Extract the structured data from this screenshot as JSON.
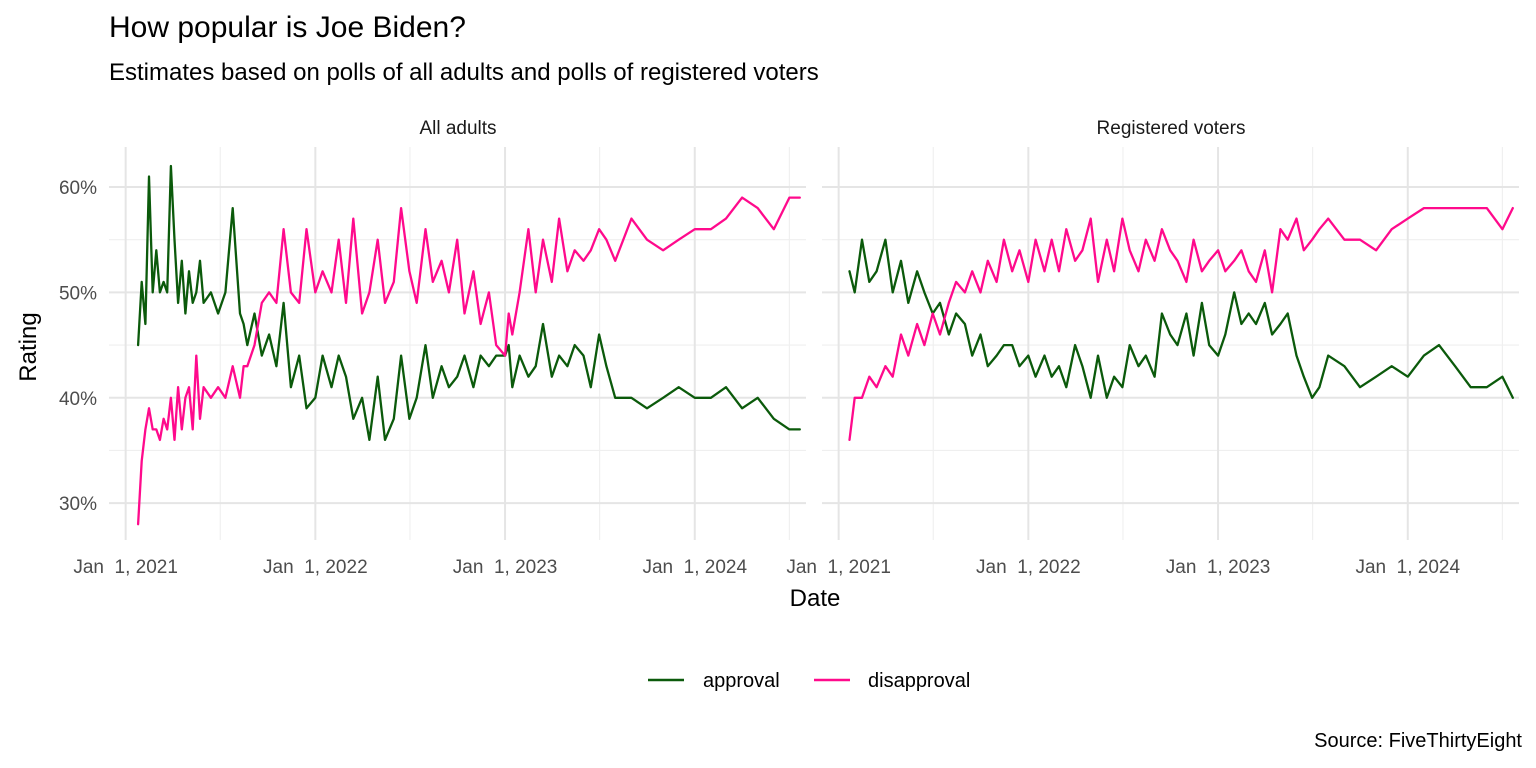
{
  "chart_data": {
    "type": "line",
    "title": "How popular is Joe Biden?",
    "subtitle": "Estimates based on polls of all adults and polls of registered voters",
    "source": "Source: FiveThirtyEight",
    "xlabel": "Date",
    "ylabel": "Rating",
    "ylim": [
      26.5,
      63.8
    ],
    "xlim": [
      "2020-11-30",
      "2024-08-02"
    ],
    "y_ticks": [
      30,
      40,
      50,
      60
    ],
    "y_tick_labels": [
      "30%",
      "40%",
      "50%",
      "60%"
    ],
    "x_ticks": [
      "2021-01-01",
      "2022-01-01",
      "2023-01-01",
      "2024-01-01"
    ],
    "x_tick_labels": [
      "Jan  1, 2021",
      "Jan  1, 2022",
      "Jan  1, 2023",
      "Jan  1, 2024"
    ],
    "grid": true,
    "legend": {
      "position": "bottom",
      "entries": [
        {
          "label": "approval",
          "color": "#0b5a0b"
        },
        {
          "label": "disapproval",
          "color": "#ff0a8c"
        }
      ]
    },
    "panels": [
      {
        "label": "All adults",
        "series": [
          {
            "name": "approval",
            "color": "#0b5a0b",
            "x": [
              "2021-01-25",
              "2021-02-01",
              "2021-02-08",
              "2021-02-15",
              "2021-02-22",
              "2021-03-01",
              "2021-03-08",
              "2021-03-15",
              "2021-03-22",
              "2021-03-29",
              "2021-04-05",
              "2021-04-12",
              "2021-04-19",
              "2021-04-26",
              "2021-05-03",
              "2021-05-10",
              "2021-05-17",
              "2021-05-24",
              "2021-05-31",
              "2021-06-14",
              "2021-06-28",
              "2021-07-12",
              "2021-07-26",
              "2021-08-09",
              "2021-08-16",
              "2021-08-23",
              "2021-09-06",
              "2021-09-20",
              "2021-10-04",
              "2021-10-18",
              "2021-11-01",
              "2021-11-15",
              "2021-12-01",
              "2021-12-15",
              "2022-01-01",
              "2022-01-15",
              "2022-02-01",
              "2022-02-15",
              "2022-03-01",
              "2022-03-15",
              "2022-04-01",
              "2022-04-15",
              "2022-05-01",
              "2022-05-15",
              "2022-06-01",
              "2022-06-15",
              "2022-07-01",
              "2022-07-15",
              "2022-08-01",
              "2022-08-15",
              "2022-09-01",
              "2022-09-15",
              "2022-10-01",
              "2022-10-15",
              "2022-11-01",
              "2022-11-15",
              "2022-12-01",
              "2022-12-15",
              "2023-01-01",
              "2023-01-08",
              "2023-01-15",
              "2023-01-29",
              "2023-02-15",
              "2023-03-01",
              "2023-03-15",
              "2023-04-01",
              "2023-04-15",
              "2023-05-01",
              "2023-05-15",
              "2023-06-01",
              "2023-06-15",
              "2023-07-01",
              "2023-07-15",
              "2023-08-01",
              "2023-09-01",
              "2023-10-01",
              "2023-11-01",
              "2023-12-01",
              "2024-01-01",
              "2024-02-01",
              "2024-03-01",
              "2024-04-01",
              "2024-05-01",
              "2024-06-01",
              "2024-07-01",
              "2024-07-21"
            ],
            "values": [
              45,
              51,
              47,
              61,
              50,
              54,
              50,
              51,
              50,
              62,
              55,
              49,
              53,
              48,
              52,
              49,
              50,
              53,
              49,
              50,
              48,
              50,
              58,
              48,
              47,
              45,
              48,
              44,
              46,
              43,
              49,
              41,
              44,
              39,
              40,
              44,
              41,
              44,
              42,
              38,
              40,
              36,
              42,
              36,
              38,
              44,
              38,
              40,
              45,
              40,
              43,
              41,
              42,
              44,
              41,
              44,
              43,
              44,
              44,
              45,
              41,
              44,
              42,
              43,
              47,
              42,
              44,
              43,
              45,
              44,
              41,
              46,
              43,
              40,
              40,
              39,
              40,
              41,
              40,
              40,
              41,
              39,
              40,
              38,
              37,
              37
            ]
          },
          {
            "name": "disapproval",
            "color": "#ff0a8c",
            "x": [
              "2021-01-25",
              "2021-02-01",
              "2021-02-08",
              "2021-02-15",
              "2021-02-22",
              "2021-03-01",
              "2021-03-08",
              "2021-03-15",
              "2021-03-22",
              "2021-03-29",
              "2021-04-05",
              "2021-04-12",
              "2021-04-19",
              "2021-04-26",
              "2021-05-03",
              "2021-05-10",
              "2021-05-17",
              "2021-05-24",
              "2021-05-31",
              "2021-06-14",
              "2021-06-28",
              "2021-07-12",
              "2021-07-26",
              "2021-08-09",
              "2021-08-16",
              "2021-08-23",
              "2021-09-06",
              "2021-09-20",
              "2021-10-04",
              "2021-10-18",
              "2021-11-01",
              "2021-11-15",
              "2021-12-01",
              "2021-12-15",
              "2022-01-01",
              "2022-01-15",
              "2022-02-01",
              "2022-02-15",
              "2022-03-01",
              "2022-03-15",
              "2022-04-01",
              "2022-04-15",
              "2022-05-01",
              "2022-05-15",
              "2022-06-01",
              "2022-06-15",
              "2022-07-01",
              "2022-07-15",
              "2022-08-01",
              "2022-08-15",
              "2022-09-01",
              "2022-09-15",
              "2022-10-01",
              "2022-10-15",
              "2022-11-01",
              "2022-11-15",
              "2022-12-01",
              "2022-12-15",
              "2023-01-01",
              "2023-01-08",
              "2023-01-15",
              "2023-01-29",
              "2023-02-15",
              "2023-03-01",
              "2023-03-15",
              "2023-04-01",
              "2023-04-15",
              "2023-05-01",
              "2023-05-15",
              "2023-06-01",
              "2023-06-15",
              "2023-07-01",
              "2023-07-15",
              "2023-08-01",
              "2023-09-01",
              "2023-10-01",
              "2023-11-01",
              "2023-12-01",
              "2024-01-01",
              "2024-02-01",
              "2024-03-01",
              "2024-04-01",
              "2024-05-01",
              "2024-06-01",
              "2024-07-01",
              "2024-07-21"
            ],
            "values": [
              28,
              34,
              37,
              39,
              37,
              37,
              36,
              38,
              37,
              40,
              36,
              41,
              37,
              40,
              41,
              37,
              44,
              38,
              41,
              40,
              41,
              40,
              43,
              40,
              43,
              43,
              45,
              49,
              50,
              49,
              56,
              50,
              49,
              56,
              50,
              52,
              50,
              55,
              49,
              57,
              48,
              50,
              55,
              49,
              51,
              58,
              52,
              49,
              56,
              51,
              53,
              50,
              55,
              48,
              52,
              47,
              50,
              45,
              44,
              48,
              46,
              50,
              56,
              50,
              55,
              51,
              57,
              52,
              54,
              53,
              54,
              56,
              55,
              53,
              57,
              55,
              54,
              55,
              56,
              56,
              57,
              59,
              58,
              56,
              59,
              59
            ]
          }
        ]
      },
      {
        "label": "Registered voters",
        "series": [
          {
            "name": "approval",
            "color": "#0b5a0b",
            "x": [
              "2021-01-22",
              "2021-02-01",
              "2021-02-15",
              "2021-03-01",
              "2021-03-15",
              "2021-04-01",
              "2021-04-15",
              "2021-05-01",
              "2021-05-15",
              "2021-06-01",
              "2021-06-15",
              "2021-07-01",
              "2021-07-15",
              "2021-08-01",
              "2021-08-15",
              "2021-09-01",
              "2021-09-15",
              "2021-10-01",
              "2021-10-15",
              "2021-11-01",
              "2021-11-15",
              "2021-12-01",
              "2021-12-15",
              "2022-01-01",
              "2022-01-15",
              "2022-02-01",
              "2022-02-15",
              "2022-03-01",
              "2022-03-15",
              "2022-04-01",
              "2022-04-15",
              "2022-05-01",
              "2022-05-15",
              "2022-06-01",
              "2022-06-15",
              "2022-07-01",
              "2022-07-15",
              "2022-08-01",
              "2022-08-15",
              "2022-09-01",
              "2022-09-15",
              "2022-10-01",
              "2022-10-15",
              "2022-11-01",
              "2022-11-15",
              "2022-12-01",
              "2022-12-15",
              "2023-01-01",
              "2023-01-15",
              "2023-02-01",
              "2023-02-15",
              "2023-03-01",
              "2023-03-15",
              "2023-04-01",
              "2023-04-15",
              "2023-05-01",
              "2023-05-15",
              "2023-06-01",
              "2023-06-15",
              "2023-07-01",
              "2023-07-15",
              "2023-08-01",
              "2023-09-01",
              "2023-10-01",
              "2023-11-01",
              "2023-12-01",
              "2024-01-01",
              "2024-02-01",
              "2024-03-01",
              "2024-04-01",
              "2024-05-01",
              "2024-06-01",
              "2024-07-01",
              "2024-07-21"
            ],
            "values": [
              52,
              50,
              55,
              51,
              52,
              55,
              50,
              53,
              49,
              52,
              50,
              48,
              49,
              46,
              48,
              47,
              44,
              46,
              43,
              44,
              45,
              45,
              43,
              44,
              42,
              44,
              42,
              43,
              41,
              45,
              43,
              40,
              44,
              40,
              42,
              41,
              45,
              43,
              44,
              42,
              48,
              46,
              45,
              48,
              44,
              49,
              45,
              44,
              46,
              50,
              47,
              48,
              47,
              49,
              46,
              47,
              48,
              44,
              42,
              40,
              41,
              44,
              43,
              41,
              42,
              43,
              42,
              44,
              45,
              43,
              41,
              41,
              42,
              40
            ]
          },
          {
            "name": "disapproval",
            "color": "#ff0a8c",
            "x": [
              "2021-01-22",
              "2021-02-01",
              "2021-02-15",
              "2021-03-01",
              "2021-03-15",
              "2021-04-01",
              "2021-04-15",
              "2021-05-01",
              "2021-05-15",
              "2021-06-01",
              "2021-06-15",
              "2021-07-01",
              "2021-07-15",
              "2021-08-01",
              "2021-08-15",
              "2021-09-01",
              "2021-09-15",
              "2021-10-01",
              "2021-10-15",
              "2021-11-01",
              "2021-11-15",
              "2021-12-01",
              "2021-12-15",
              "2022-01-01",
              "2022-01-15",
              "2022-02-01",
              "2022-02-15",
              "2022-03-01",
              "2022-03-15",
              "2022-04-01",
              "2022-04-15",
              "2022-05-01",
              "2022-05-15",
              "2022-06-01",
              "2022-06-15",
              "2022-07-01",
              "2022-07-15",
              "2022-08-01",
              "2022-08-15",
              "2022-09-01",
              "2022-09-15",
              "2022-10-01",
              "2022-10-15",
              "2022-11-01",
              "2022-11-15",
              "2022-12-01",
              "2022-12-15",
              "2023-01-01",
              "2023-01-15",
              "2023-02-01",
              "2023-02-15",
              "2023-03-01",
              "2023-03-15",
              "2023-04-01",
              "2023-04-15",
              "2023-05-01",
              "2023-05-15",
              "2023-06-01",
              "2023-06-15",
              "2023-07-01",
              "2023-07-15",
              "2023-08-01",
              "2023-09-01",
              "2023-10-01",
              "2023-11-01",
              "2023-12-01",
              "2024-01-01",
              "2024-02-01",
              "2024-03-01",
              "2024-04-01",
              "2024-05-01",
              "2024-06-01",
              "2024-07-01",
              "2024-07-21"
            ],
            "values": [
              36,
              40,
              40,
              42,
              41,
              43,
              42,
              46,
              44,
              47,
              45,
              48,
              46,
              49,
              51,
              50,
              52,
              50,
              53,
              51,
              55,
              52,
              54,
              51,
              55,
              52,
              55,
              52,
              56,
              53,
              54,
              57,
              51,
              55,
              52,
              57,
              54,
              52,
              55,
              53,
              56,
              54,
              53,
              51,
              55,
              52,
              53,
              54,
              52,
              53,
              54,
              52,
              51,
              54,
              50,
              56,
              55,
              57,
              54,
              55,
              56,
              57,
              55,
              55,
              54,
              56,
              57,
              58,
              58,
              58,
              58,
              58,
              56,
              58
            ]
          }
        ]
      }
    ]
  }
}
